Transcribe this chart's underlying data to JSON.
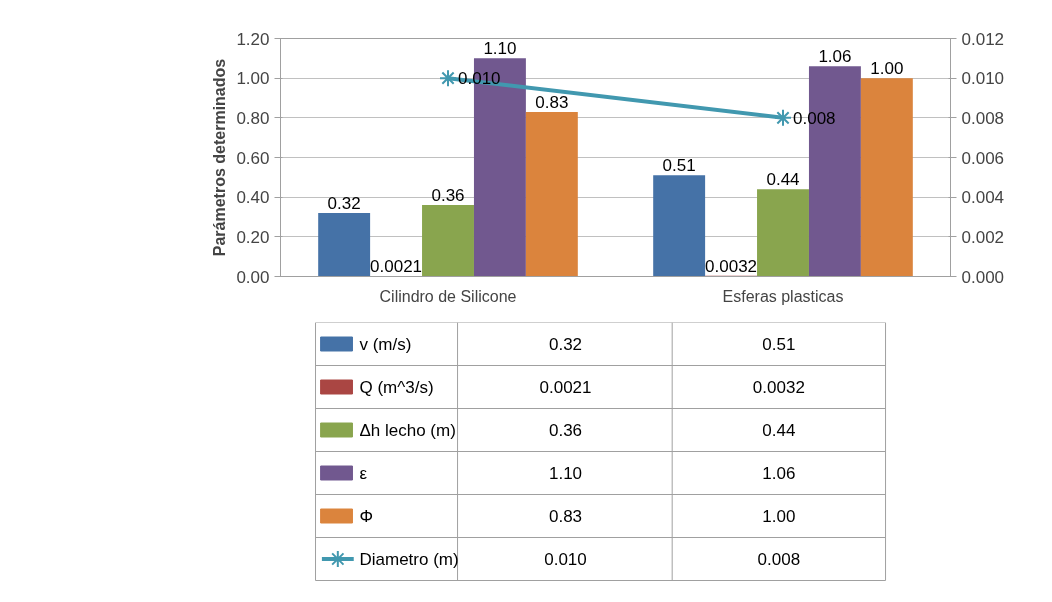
{
  "chart_data": {
    "type": "bar",
    "ylabel": "Parámetros determinados",
    "categories": [
      "Cilindro de Silicone",
      "Esferas plasticas"
    ],
    "series": [
      {
        "name": "v (m/s)",
        "color": "#4572a7",
        "values": [
          0.32,
          0.51
        ],
        "value_labels": [
          "0.32",
          "0.51"
        ]
      },
      {
        "name": "Q (m^3/s)",
        "color": "#aa4643",
        "values": [
          0.0021,
          0.0032
        ],
        "value_labels": [
          "0.0021",
          "0.0032"
        ]
      },
      {
        "name": "Δh lecho (m)",
        "color": "#89a54e",
        "values": [
          0.36,
          0.44
        ],
        "value_labels": [
          "0.36",
          "0.44"
        ]
      },
      {
        "name": "ε",
        "color": "#71588f",
        "values": [
          1.1,
          1.06
        ],
        "value_labels": [
          "1.10",
          "1.06"
        ]
      },
      {
        "name": "Φ",
        "color": "#db843d",
        "values": [
          0.83,
          1.0
        ],
        "value_labels": [
          "0.83",
          "1.00"
        ]
      },
      {
        "name": "Diametro (m)",
        "type": "line",
        "axis": "y2",
        "color": "#4198af",
        "values": [
          0.01,
          0.008
        ],
        "value_labels": [
          "0.010",
          "0.008"
        ],
        "marker": "cross",
        "line_style": "solid"
      }
    ],
    "ylim": [
      0,
      1.2
    ],
    "yticks": [
      {
        "value": 0,
        "label": "0.00"
      },
      {
        "value": 0.2,
        "label": "0.20"
      },
      {
        "value": 0.4,
        "label": "0.40"
      },
      {
        "value": 0.6,
        "label": "0.60"
      },
      {
        "value": 0.8,
        "label": "0.80"
      },
      {
        "value": 1.0,
        "label": "1.00"
      },
      {
        "value": 1.2,
        "label": "1.20"
      }
    ],
    "y2lim": [
      0,
      0.012
    ],
    "y2ticks": [
      {
        "value": 0,
        "label": "0.000"
      },
      {
        "value": 0.002,
        "label": "0.002"
      },
      {
        "value": 0.004,
        "label": "0.004"
      },
      {
        "value": 0.006,
        "label": "0.006"
      },
      {
        "value": 0.008,
        "label": "0.008"
      },
      {
        "value": 0.01,
        "label": "0.010"
      },
      {
        "value": 0.012,
        "label": "0.012"
      }
    ],
    "grid": "y",
    "legend": "bottom left"
  }
}
